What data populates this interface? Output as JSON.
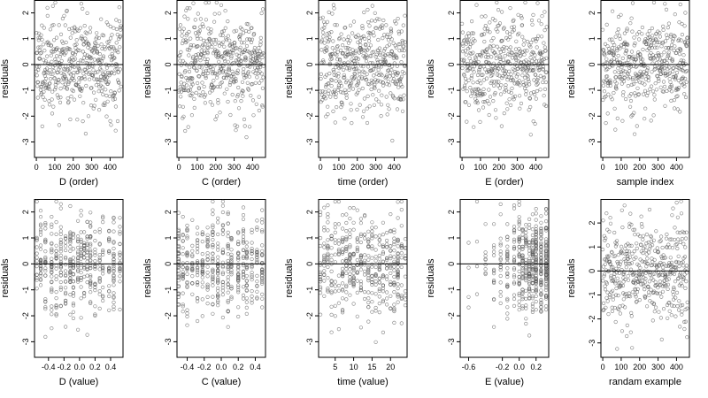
{
  "chart_data": [
    {
      "type": "scatter",
      "xlabel": "D (order)",
      "ylabel": "residuals",
      "xlim": [
        -10,
        470
      ],
      "ylim": [
        -3.6,
        2.5
      ],
      "xticks": [
        0,
        100,
        200,
        300,
        400
      ],
      "xtick_labels": [
        "0",
        "100",
        "200",
        "300",
        "400"
      ],
      "yticks": [
        -3,
        -2,
        -1,
        0,
        1,
        2
      ],
      "hline": 0,
      "gen": {
        "kind": "index",
        "n": 460,
        "sd": 0.95,
        "seed": 11,
        "min": -3.5,
        "max": 2.4
      }
    },
    {
      "type": "scatter",
      "xlabel": "C (order)",
      "ylabel": "residuals",
      "xlim": [
        -10,
        470
      ],
      "ylim": [
        -3.6,
        2.5
      ],
      "xticks": [
        0,
        100,
        200,
        300,
        400
      ],
      "xtick_labels": [
        "0",
        "100",
        "200",
        "300",
        "400"
      ],
      "yticks": [
        -3,
        -2,
        -1,
        0,
        1,
        2
      ],
      "hline": 0,
      "gen": {
        "kind": "index",
        "n": 460,
        "sd": 0.95,
        "seed": 23,
        "min": -3.5,
        "max": 2.4
      }
    },
    {
      "type": "scatter",
      "xlabel": "time (order)",
      "ylabel": "residuals",
      "xlim": [
        -10,
        470
      ],
      "ylim": [
        -3.6,
        2.5
      ],
      "xticks": [
        0,
        100,
        200,
        300,
        400
      ],
      "xtick_labels": [
        "0",
        "100",
        "200",
        "300",
        "400"
      ],
      "yticks": [
        -3,
        -2,
        -1,
        0,
        1,
        2
      ],
      "hline": 0,
      "gen": {
        "kind": "index",
        "n": 460,
        "sd": 0.95,
        "seed": 37,
        "min": -3.5,
        "max": 2.4
      }
    },
    {
      "type": "scatter",
      "xlabel": "E (order)",
      "ylabel": "residuals",
      "xlim": [
        -10,
        470
      ],
      "ylim": [
        -3.6,
        2.5
      ],
      "xticks": [
        0,
        100,
        200,
        300,
        400
      ],
      "xtick_labels": [
        "0",
        "100",
        "200",
        "300",
        "400"
      ],
      "yticks": [
        -3,
        -2,
        -1,
        0,
        1,
        2
      ],
      "hline": 0,
      "gen": {
        "kind": "index",
        "n": 460,
        "sd": 0.95,
        "seed": 41,
        "min": -3.5,
        "max": 2.4
      }
    },
    {
      "type": "scatter",
      "xlabel": "sample index",
      "ylabel": "residuals",
      "xlim": [
        -10,
        470
      ],
      "ylim": [
        -3.6,
        2.5
      ],
      "xticks": [
        0,
        100,
        200,
        300,
        400
      ],
      "xtick_labels": [
        "0",
        "100",
        "200",
        "300",
        "400"
      ],
      "yticks": [
        -3,
        -2,
        -1,
        0,
        1,
        2
      ],
      "hline": 0,
      "gen": {
        "kind": "index",
        "n": 460,
        "sd": 0.95,
        "seed": 53,
        "min": -3.5,
        "max": 2.4
      }
    },
    {
      "type": "scatter",
      "xlabel": "D (value)",
      "ylabel": "residuals",
      "xlim": [
        -0.58,
        0.56
      ],
      "ylim": [
        -3.6,
        2.5
      ],
      "xticks": [
        -0.4,
        -0.2,
        0.0,
        0.2,
        0.4
      ],
      "xtick_labels": [
        "-0.4",
        "-0.2",
        "0.0",
        "0.2",
        "0.4"
      ],
      "yticks": [
        -3,
        -2,
        -1,
        0,
        1,
        2
      ],
      "hline": 0,
      "gen": {
        "kind": "discrete",
        "n": 460,
        "sd": 0.95,
        "seed": 61,
        "min": -3.5,
        "max": 2.4,
        "levels": [
          -0.55,
          -0.5,
          -0.44,
          -0.36,
          -0.3,
          -0.24,
          -0.18,
          -0.12,
          -0.08,
          -0.02,
          0.02,
          0.06,
          0.1,
          0.14,
          0.2,
          0.26,
          0.3,
          0.38,
          0.44,
          0.52
        ]
      }
    },
    {
      "type": "scatter",
      "xlabel": "C (value)",
      "ylabel": "residuals",
      "xlim": [
        -0.52,
        0.52
      ],
      "ylim": [
        -3.6,
        2.5
      ],
      "xticks": [
        -0.4,
        -0.2,
        0.0,
        0.2,
        0.4
      ],
      "xtick_labels": [
        "-0.4",
        "-0.2",
        "0.0",
        "0.2",
        "0.4"
      ],
      "yticks": [
        -3,
        -2,
        -1,
        0,
        1,
        2
      ],
      "hline": 0,
      "gen": {
        "kind": "discrete",
        "n": 460,
        "sd": 0.95,
        "seed": 71,
        "min": -3.5,
        "max": 2.4,
        "levels": [
          -0.5,
          -0.45,
          -0.4,
          -0.34,
          -0.28,
          -0.22,
          -0.16,
          -0.1,
          -0.04,
          0.02,
          0.08,
          0.12,
          0.2,
          0.26,
          0.3,
          0.36,
          0.42,
          0.48
        ]
      }
    },
    {
      "type": "scatter",
      "xlabel": "time (value)",
      "ylabel": "residuals",
      "xlim": [
        0.5,
        24.5
      ],
      "ylim": [
        -3.6,
        2.5
      ],
      "xticks": [
        5,
        10,
        15,
        20
      ],
      "xtick_labels": [
        "5",
        "10",
        "15",
        "20"
      ],
      "yticks": [
        -3,
        -2,
        -1,
        0,
        1,
        2
      ],
      "hline": 0,
      "gen": {
        "kind": "discrete",
        "n": 460,
        "sd": 0.95,
        "seed": 83,
        "min": -3.5,
        "max": 2.4,
        "levels": [
          1,
          2,
          3,
          4,
          5,
          6,
          7,
          8,
          9,
          10,
          11,
          12,
          13,
          14,
          15,
          16,
          17,
          18,
          19,
          20,
          21,
          22,
          23,
          24
        ]
      }
    },
    {
      "type": "scatter",
      "xlabel": "E (value)",
      "ylabel": "residuals",
      "xlim": [
        -0.7,
        0.35
      ],
      "ylim": [
        -3.6,
        2.5
      ],
      "xticks": [
        -0.6,
        -0.2,
        0.0,
        0.2
      ],
      "xtick_labels": [
        "-0.6",
        "-0.2",
        "0.0",
        "0.2"
      ],
      "yticks": [
        -3,
        -2,
        -1,
        0,
        1,
        2
      ],
      "hline": 0,
      "gen": {
        "kind": "skewed",
        "n": 460,
        "sd": 0.95,
        "seed": 97,
        "min": -3.5,
        "max": 2.4,
        "levels": [
          -0.68,
          -0.6,
          -0.5,
          -0.4,
          -0.3,
          -0.22,
          -0.14,
          -0.06,
          0.0,
          0.04,
          0.08,
          0.12,
          0.16,
          0.2,
          0.26,
          0.32
        ]
      }
    },
    {
      "type": "scatter",
      "xlabel": "randam example",
      "ylabel": "residuals",
      "xlim": [
        -10,
        470
      ],
      "ylim": [
        -3.6,
        3.0
      ],
      "xticks": [
        0,
        100,
        200,
        300,
        400
      ],
      "xtick_labels": [
        "0",
        "100",
        "200",
        "300",
        "400"
      ],
      "yticks": [
        -3,
        -2,
        -1,
        0,
        1,
        2
      ],
      "hline": 0,
      "gen": {
        "kind": "index",
        "n": 460,
        "sd": 1.1,
        "seed": 109,
        "min": -3.3,
        "max": 2.9
      }
    }
  ]
}
